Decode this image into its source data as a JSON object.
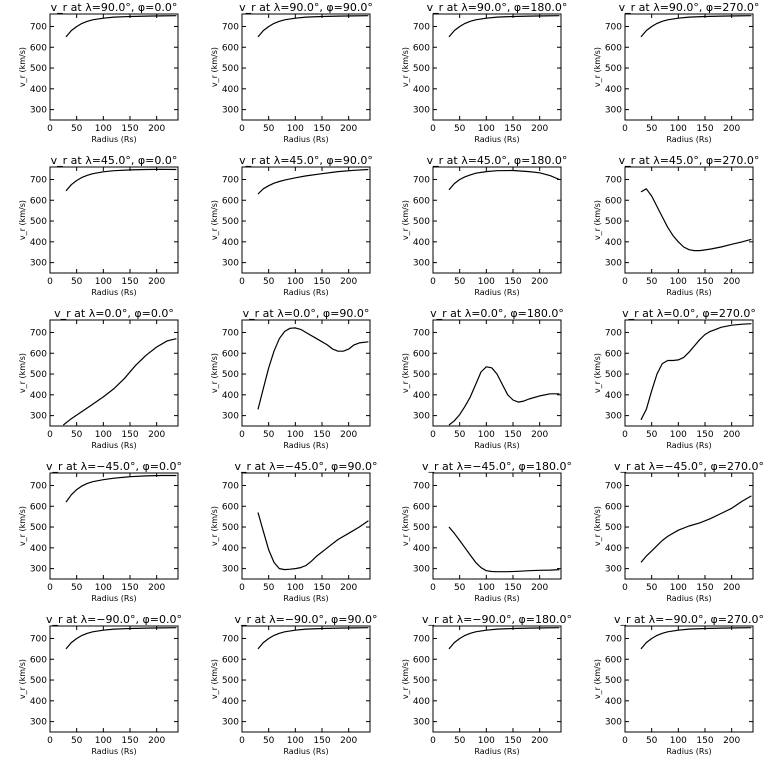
{
  "figure": {
    "panel_common": {
      "xlabel": "Radius (Rs)",
      "ylabel": "v_r (km/s)",
      "xticks": [
        0,
        50,
        100,
        150,
        200
      ],
      "yticks": [
        300,
        400,
        500,
        600,
        700
      ]
    }
  },
  "chart_data": [
    {
      "type": "line",
      "title": "v_r at λ=90.0°, φ=0.0°",
      "xlabel": "Radius (Rs)",
      "ylabel": "v_r (km/s)",
      "xlim": [
        0,
        240
      ],
      "ylim": [
        250,
        760
      ],
      "x": [
        30,
        40,
        50,
        60,
        70,
        80,
        100,
        120,
        150,
        180,
        210,
        237
      ],
      "y": [
        650,
        680,
        700,
        715,
        725,
        732,
        740,
        745,
        748,
        750,
        751,
        752
      ]
    },
    {
      "type": "line",
      "title": "v_r at λ=90.0°, φ=90.0°",
      "xlabel": "Radius (Rs)",
      "ylabel": "v_r (km/s)",
      "xlim": [
        0,
        240
      ],
      "ylim": [
        250,
        760
      ],
      "x": [
        30,
        40,
        50,
        60,
        70,
        80,
        100,
        120,
        150,
        180,
        210,
        237
      ],
      "y": [
        650,
        680,
        700,
        715,
        725,
        732,
        740,
        745,
        748,
        750,
        751,
        752
      ]
    },
    {
      "type": "line",
      "title": "v_r at λ=90.0°, φ=180.0°",
      "xlabel": "Radius (Rs)",
      "ylabel": "v_r (km/s)",
      "xlim": [
        0,
        240
      ],
      "ylim": [
        250,
        760
      ],
      "x": [
        30,
        40,
        50,
        60,
        70,
        80,
        100,
        120,
        150,
        180,
        210,
        237
      ],
      "y": [
        650,
        680,
        700,
        715,
        725,
        732,
        740,
        745,
        748,
        750,
        751,
        752
      ]
    },
    {
      "type": "line",
      "title": "v_r at λ=90.0°, φ=270.0°",
      "xlabel": "Radius (Rs)",
      "ylabel": "v_r (km/s)",
      "xlim": [
        0,
        240
      ],
      "ylim": [
        250,
        760
      ],
      "x": [
        30,
        40,
        50,
        60,
        70,
        80,
        100,
        120,
        150,
        180,
        210,
        237
      ],
      "y": [
        650,
        680,
        700,
        715,
        725,
        732,
        740,
        745,
        748,
        750,
        751,
        752
      ]
    },
    {
      "type": "line",
      "title": "v_r at λ=45.0°, φ=0.0°",
      "xlabel": "Radius (Rs)",
      "ylabel": "v_r (km/s)",
      "xlim": [
        0,
        240
      ],
      "ylim": [
        250,
        760
      ],
      "x": [
        30,
        40,
        50,
        60,
        70,
        80,
        100,
        120,
        150,
        180,
        210,
        237
      ],
      "y": [
        645,
        675,
        695,
        710,
        720,
        728,
        737,
        742,
        746,
        748,
        749,
        748
      ]
    },
    {
      "type": "line",
      "title": "v_r at λ=45.0°, φ=90.0°",
      "xlabel": "Radius (Rs)",
      "ylabel": "v_r (km/s)",
      "xlim": [
        0,
        240
      ],
      "ylim": [
        250,
        760
      ],
      "x": [
        30,
        40,
        50,
        60,
        70,
        80,
        100,
        120,
        150,
        180,
        210,
        237
      ],
      "y": [
        630,
        655,
        670,
        682,
        690,
        697,
        708,
        717,
        728,
        738,
        744,
        748
      ]
    },
    {
      "type": "line",
      "title": "v_r at λ=45.0°, φ=180.0°",
      "xlabel": "Radius (Rs)",
      "ylabel": "v_r (km/s)",
      "xlim": [
        0,
        240
      ],
      "ylim": [
        250,
        760
      ],
      "x": [
        30,
        40,
        50,
        60,
        70,
        80,
        100,
        120,
        150,
        180,
        200,
        220,
        237
      ],
      "y": [
        650,
        680,
        700,
        713,
        722,
        730,
        738,
        742,
        743,
        738,
        732,
        718,
        700
      ]
    },
    {
      "type": "line",
      "title": "v_r at λ=45.0°, φ=270.0°",
      "xlabel": "Radius (Rs)",
      "ylabel": "v_r (km/s)",
      "xlim": [
        0,
        240
      ],
      "ylim": [
        250,
        760
      ],
      "x": [
        30,
        40,
        50,
        60,
        70,
        80,
        90,
        100,
        110,
        120,
        130,
        140,
        160,
        180,
        200,
        220,
        237
      ],
      "y": [
        640,
        655,
        620,
        570,
        520,
        470,
        430,
        400,
        375,
        362,
        358,
        358,
        365,
        375,
        388,
        400,
        412
      ]
    },
    {
      "type": "line",
      "title": "v_r at λ=0.0°, φ=0.0°",
      "xlabel": "Radius (Rs)",
      "ylabel": "v_r (km/s)",
      "xlim": [
        0,
        240
      ],
      "ylim": [
        250,
        760
      ],
      "x": [
        25,
        40,
        60,
        80,
        100,
        120,
        140,
        160,
        180,
        200,
        220,
        237
      ],
      "y": [
        255,
        285,
        320,
        355,
        390,
        430,
        480,
        540,
        590,
        630,
        660,
        670
      ]
    },
    {
      "type": "line",
      "title": "v_r at λ=0.0°, φ=90.0°",
      "xlabel": "Radius (Rs)",
      "ylabel": "v_r (km/s)",
      "xlim": [
        0,
        240
      ],
      "ylim": [
        250,
        760
      ],
      "x": [
        30,
        40,
        50,
        60,
        70,
        80,
        90,
        100,
        110,
        120,
        140,
        160,
        170,
        180,
        190,
        200,
        210,
        220,
        237
      ],
      "y": [
        330,
        430,
        530,
        610,
        670,
        705,
        720,
        722,
        715,
        700,
        670,
        640,
        620,
        610,
        610,
        620,
        640,
        650,
        655
      ]
    },
    {
      "type": "line",
      "title": "v_r at λ=0.0°, φ=180.0°",
      "xlabel": "Radius (Rs)",
      "ylabel": "v_r (km/s)",
      "xlim": [
        0,
        240
      ],
      "ylim": [
        250,
        760
      ],
      "x": [
        30,
        40,
        50,
        60,
        70,
        80,
        90,
        100,
        110,
        120,
        130,
        140,
        150,
        160,
        170,
        180,
        200,
        220,
        237
      ],
      "y": [
        255,
        275,
        305,
        345,
        390,
        450,
        510,
        535,
        530,
        500,
        450,
        400,
        375,
        365,
        370,
        380,
        395,
        405,
        405
      ]
    },
    {
      "type": "line",
      "title": "v_r at λ=0.0°, φ=270.0°",
      "xlabel": "Radius (Rs)",
      "ylabel": "v_r (km/s)",
      "xlim": [
        0,
        240
      ],
      "ylim": [
        250,
        760
      ],
      "x": [
        30,
        40,
        50,
        60,
        70,
        80,
        90,
        100,
        110,
        120,
        130,
        140,
        150,
        160,
        170,
        180,
        200,
        220,
        237
      ],
      "y": [
        280,
        330,
        420,
        500,
        550,
        565,
        565,
        568,
        580,
        605,
        635,
        665,
        690,
        705,
        715,
        725,
        735,
        740,
        742
      ]
    },
    {
      "type": "line",
      "title": "v_r at λ=−45.0°, φ=0.0°",
      "xlabel": "Radius (Rs)",
      "ylabel": "v_r (km/s)",
      "xlim": [
        0,
        240
      ],
      "ylim": [
        250,
        760
      ],
      "x": [
        30,
        40,
        50,
        60,
        70,
        80,
        100,
        120,
        150,
        180,
        210,
        237
      ],
      "y": [
        620,
        655,
        680,
        698,
        710,
        718,
        728,
        735,
        742,
        746,
        748,
        748
      ]
    },
    {
      "type": "line",
      "title": "v_r at λ=−45.0°, φ=90.0°",
      "xlabel": "Radius (Rs)",
      "ylabel": "v_r (km/s)",
      "xlim": [
        0,
        240
      ],
      "ylim": [
        250,
        760
      ],
      "x": [
        30,
        40,
        50,
        60,
        70,
        80,
        90,
        100,
        110,
        120,
        130,
        140,
        160,
        180,
        200,
        220,
        237
      ],
      "y": [
        570,
        480,
        390,
        330,
        300,
        295,
        297,
        300,
        305,
        315,
        335,
        360,
        400,
        440,
        470,
        500,
        530
      ]
    },
    {
      "type": "line",
      "title": "v_r at λ=−45.0°, φ=180.0°",
      "xlabel": "Radius (Rs)",
      "ylabel": "v_r (km/s)",
      "xlim": [
        0,
        240
      ],
      "ylim": [
        250,
        760
      ],
      "x": [
        30,
        40,
        50,
        60,
        70,
        80,
        90,
        100,
        110,
        120,
        140,
        160,
        180,
        200,
        220,
        237
      ],
      "y": [
        500,
        470,
        435,
        400,
        365,
        330,
        305,
        290,
        286,
        285,
        285,
        287,
        290,
        292,
        293,
        295
      ]
    },
    {
      "type": "line",
      "title": "v_r at λ=−45.0°, φ=270.0°",
      "xlabel": "Radius (Rs)",
      "ylabel": "v_r (km/s)",
      "xlim": [
        0,
        240
      ],
      "ylim": [
        250,
        760
      ],
      "x": [
        30,
        40,
        50,
        60,
        70,
        80,
        100,
        120,
        140,
        160,
        180,
        200,
        220,
        237
      ],
      "y": [
        330,
        360,
        385,
        410,
        435,
        455,
        485,
        505,
        520,
        540,
        565,
        590,
        625,
        650
      ]
    },
    {
      "type": "line",
      "title": "v_r at λ=−90.0°, φ=0.0°",
      "xlabel": "Radius (Rs)",
      "ylabel": "v_r (km/s)",
      "xlim": [
        0,
        240
      ],
      "ylim": [
        250,
        760
      ],
      "x": [
        30,
        40,
        50,
        60,
        70,
        80,
        100,
        120,
        150,
        180,
        210,
        237
      ],
      "y": [
        650,
        680,
        700,
        715,
        725,
        732,
        740,
        745,
        748,
        750,
        751,
        752
      ]
    },
    {
      "type": "line",
      "title": "v_r at λ=−90.0°, φ=90.0°",
      "xlabel": "Radius (Rs)",
      "ylabel": "v_r (km/s)",
      "xlim": [
        0,
        240
      ],
      "ylim": [
        250,
        760
      ],
      "x": [
        30,
        40,
        50,
        60,
        70,
        80,
        100,
        120,
        150,
        180,
        210,
        237
      ],
      "y": [
        650,
        680,
        700,
        715,
        725,
        732,
        740,
        745,
        748,
        750,
        751,
        752
      ]
    },
    {
      "type": "line",
      "title": "v_r at λ=−90.0°, φ=180.0°",
      "xlabel": "Radius (Rs)",
      "ylabel": "v_r (km/s)",
      "xlim": [
        0,
        240
      ],
      "ylim": [
        250,
        760
      ],
      "x": [
        30,
        40,
        50,
        60,
        70,
        80,
        100,
        120,
        150,
        180,
        210,
        237
      ],
      "y": [
        650,
        680,
        700,
        715,
        725,
        732,
        740,
        745,
        748,
        750,
        751,
        752
      ]
    },
    {
      "type": "line",
      "title": "v_r at λ=−90.0°, φ=270.0°",
      "xlabel": "Radius (Rs)",
      "ylabel": "v_r (km/s)",
      "xlim": [
        0,
        240
      ],
      "ylim": [
        250,
        760
      ],
      "x": [
        30,
        40,
        50,
        60,
        70,
        80,
        100,
        120,
        150,
        180,
        210,
        237
      ],
      "y": [
        650,
        680,
        700,
        715,
        725,
        732,
        740,
        745,
        748,
        750,
        751,
        752
      ]
    }
  ]
}
